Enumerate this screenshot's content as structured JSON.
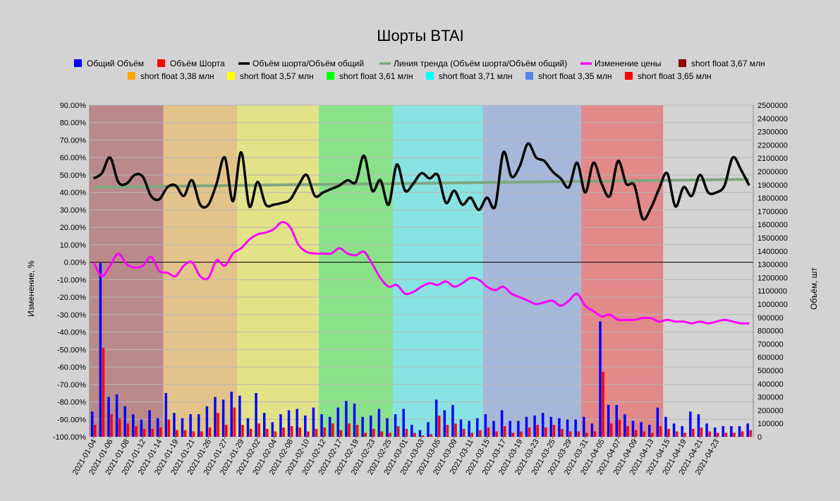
{
  "chart_data": {
    "type": "bar+line",
    "title": "Шорты BTAI",
    "ylabel_left": "Изменение, %",
    "ylabel_right": "Объём, шт",
    "ylim_left": [
      -100,
      90
    ],
    "ylim_right": [
      0,
      2500000
    ],
    "yticks_left": [
      "90.00%",
      "80.00%",
      "70.00%",
      "60.00%",
      "50.00%",
      "40.00%",
      "30.00%",
      "20.00%",
      "10.00%",
      "0.00%",
      "-10.00%",
      "-20.00%",
      "-30.00%",
      "-40.00%",
      "-50.00%",
      "-60.00%",
      "-70.00%",
      "-80.00%",
      "-90.00%",
      "-100.00%"
    ],
    "yticks_right": [
      "2500000",
      "2400000",
      "2300000",
      "2200000",
      "2100000",
      "2000000",
      "1900000",
      "1800000",
      "1700000",
      "1600000",
      "1500000",
      "1400000",
      "1300000",
      "1200000",
      "1100000",
      "1000000",
      "900000",
      "800000",
      "700000",
      "600000",
      "500000",
      "400000",
      "300000",
      "200000",
      "100000",
      "0"
    ],
    "x_tick_labels": [
      "2021-01-04",
      "2021-01-06",
      "2021-01-08",
      "2021-01-12",
      "2021-01-14",
      "2021-01-19",
      "2021-01-21",
      "2021-01-26",
      "2021-01-27",
      "2021-01-29",
      "2021-02-02",
      "2021-02-04",
      "2021-02-08",
      "2021-02-10",
      "2021-02-12",
      "2021-02-17",
      "2021-02-19",
      "2021-02-23",
      "2021-02-25",
      "2021-03-01",
      "2021-03-03",
      "2021-03-05",
      "2021-03-09",
      "2021-03-11",
      "2021-03-15",
      "2021-03-17",
      "2021-03-19",
      "2021-03-23",
      "2021-03-25",
      "2021-03-29",
      "2021-03-31",
      "2021-04-05",
      "2021-04-07",
      "2021-04-09",
      "2021-04-13",
      "2021-04-15",
      "2021-04-19",
      "2021-04-21",
      "2021-04-23"
    ],
    "legend": [
      {
        "label": "Общий Объём",
        "color": "#0000ff",
        "kind": "box"
      },
      {
        "label": "Объём Шорта",
        "color": "#ff0000",
        "kind": "box"
      },
      {
        "label": "Объём шорта/Объём общий",
        "color": "#000000",
        "kind": "line"
      },
      {
        "label": "Линия тренда (Объём шорта/Объём общий)",
        "color": "#7fa87f",
        "kind": "line"
      },
      {
        "label": "Изменение цены",
        "color": "#ff00ff",
        "kind": "line"
      },
      {
        "label": "short float 3,67 млн",
        "color": "#8b0000",
        "kind": "box"
      },
      {
        "label": "short float 3,38 млн",
        "color": "#ffa500",
        "kind": "box"
      },
      {
        "label": "short float 3,57 млн",
        "color": "#ffff00",
        "kind": "box"
      },
      {
        "label": "short float 3,61 млн",
        "color": "#00ff00",
        "kind": "box"
      },
      {
        "label": "short float 3,71 млн",
        "color": "#00ffff",
        "kind": "box"
      },
      {
        "label": "short float 3,35 млн",
        "color": "#4f86e8",
        "kind": "box"
      },
      {
        "label": "short float 3,65 млн",
        "color": "#ff0000",
        "kind": "box"
      }
    ],
    "regions": [
      {
        "label": "short float 3,67 млн",
        "from": 0,
        "to": 9,
        "color": "#8b0000",
        "opacity": 0.35
      },
      {
        "label": "short float 3,38 млн",
        "from": 9,
        "to": 18,
        "color": "#ffa500",
        "opacity": 0.35
      },
      {
        "label": "short float 3,57 млн",
        "from": 18,
        "to": 28,
        "color": "#ffff00",
        "opacity": 0.35
      },
      {
        "label": "short float 3,61 млн",
        "from": 28,
        "to": 37,
        "color": "#00ff00",
        "opacity": 0.35
      },
      {
        "label": "short float 3,71 млн",
        "from": 37,
        "to": 48,
        "color": "#00ffff",
        "opacity": 0.35
      },
      {
        "label": "short float 3,35 млн",
        "from": 48,
        "to": 60,
        "color": "#4f86e8",
        "opacity": 0.35
      },
      {
        "label": "short float 3,65 млн",
        "from": 60,
        "to": 70,
        "color": "#ff0000",
        "opacity": 0.35
      }
    ],
    "n_days": 81,
    "x_tick_days": [
      0,
      2,
      4,
      6,
      8,
      10,
      12,
      14,
      16,
      18,
      20,
      22,
      24,
      26,
      28,
      30,
      32,
      34,
      36,
      38,
      40,
      42,
      44,
      46,
      48,
      50,
      52,
      54,
      56,
      58,
      60,
      62,
      64,
      66,
      68,
      70,
      72,
      74,
      76
    ],
    "series": [
      {
        "name": "Общий Объём",
        "kind": "bar",
        "axis": "right",
        "values": [
          190000,
          1310000,
          300000,
          320000,
          230000,
          170000,
          130000,
          200000,
          140000,
          330000,
          180000,
          140000,
          170000,
          170000,
          230000,
          300000,
          280000,
          340000,
          310000,
          140000,
          330000,
          180000,
          110000,
          170000,
          200000,
          210000,
          160000,
          220000,
          170000,
          150000,
          220000,
          270000,
          250000,
          150000,
          160000,
          210000,
          140000,
          170000,
          210000,
          90000,
          50000,
          110000,
          280000,
          200000,
          240000,
          130000,
          120000,
          140000,
          170000,
          120000,
          200000,
          120000,
          120000,
          150000,
          160000,
          180000,
          150000,
          140000,
          130000,
          130000,
          150000,
          100000,
          870000,
          240000,
          240000,
          170000,
          120000,
          110000,
          90000,
          220000,
          150000,
          100000,
          80000,
          190000,
          170000,
          100000,
          70000,
          80000,
          80000,
          80000,
          100000
        ]
      },
      {
        "name": "Объём Шорта",
        "kind": "bar",
        "axis": "right",
        "values": [
          90000,
          670000,
          170000,
          140000,
          100000,
          80000,
          60000,
          60000,
          70000,
          130000,
          50000,
          50000,
          40000,
          40000,
          70000,
          180000,
          90000,
          220000,
          90000,
          60000,
          100000,
          60000,
          40000,
          70000,
          80000,
          70000,
          40000,
          60000,
          70000,
          100000,
          50000,
          100000,
          90000,
          30000,
          60000,
          40000,
          30000,
          80000,
          60000,
          30000,
          10000,
          20000,
          160000,
          90000,
          100000,
          60000,
          30000,
          50000,
          70000,
          40000,
          80000,
          30000,
          40000,
          70000,
          90000,
          70000,
          90000,
          60000,
          40000,
          40000,
          30000,
          40000,
          490000,
          100000,
          130000,
          80000,
          50000,
          40000,
          30000,
          80000,
          60000,
          40000,
          30000,
          60000,
          70000,
          40000,
          30000,
          30000,
          30000,
          40000,
          50000
        ]
      },
      {
        "name": "Объём шорта/Объём общий",
        "kind": "line",
        "axis": "left",
        "values": [
          48,
          51,
          60,
          46,
          45,
          50,
          49,
          38,
          36,
          43,
          44,
          38,
          47,
          33,
          33,
          45,
          60,
          35,
          63,
          32,
          46,
          33,
          33,
          34,
          36,
          44,
          50,
          38,
          40,
          42,
          44,
          47,
          46,
          61,
          41,
          47,
          33,
          56,
          41,
          45,
          51,
          48,
          50,
          34,
          41,
          33,
          37,
          30,
          37,
          32,
          63,
          49,
          55,
          68,
          60,
          58,
          52,
          48,
          43,
          57,
          40,
          57,
          45,
          38,
          58,
          45,
          44,
          25,
          31,
          42,
          51,
          32,
          43,
          38,
          50,
          40,
          40,
          44,
          60,
          53,
          44
        ]
      },
      {
        "name": "Изменение цены",
        "kind": "line",
        "axis": "left",
        "values": [
          0,
          -8,
          -2,
          5,
          -1,
          -3,
          -2,
          3,
          -5,
          -6,
          -8,
          -2,
          0,
          -8,
          -9,
          1,
          -2,
          5,
          8,
          13,
          16,
          17,
          19,
          23,
          20,
          10,
          6,
          5,
          5,
          5,
          8,
          5,
          4,
          6,
          -1,
          -9,
          -14,
          -13,
          -18,
          -17,
          -14,
          -12,
          -13,
          -11,
          -14,
          -12,
          -9,
          -10,
          -14,
          -16,
          -14,
          -18,
          -20,
          -22,
          -24,
          -23,
          -22,
          -25,
          -22,
          -18,
          -25,
          -28,
          -31,
          -30,
          -33,
          -33,
          -33,
          -32,
          -32,
          -34,
          -33,
          -34,
          -34,
          -35,
          -34,
          -35,
          -34,
          -33,
          -34,
          -35,
          -35
        ]
      },
      {
        "name": "Линия тренда (Объём шорта/Объём общий)",
        "kind": "trend",
        "axis": "left",
        "values": [
          43,
          47.5
        ]
      }
    ]
  }
}
